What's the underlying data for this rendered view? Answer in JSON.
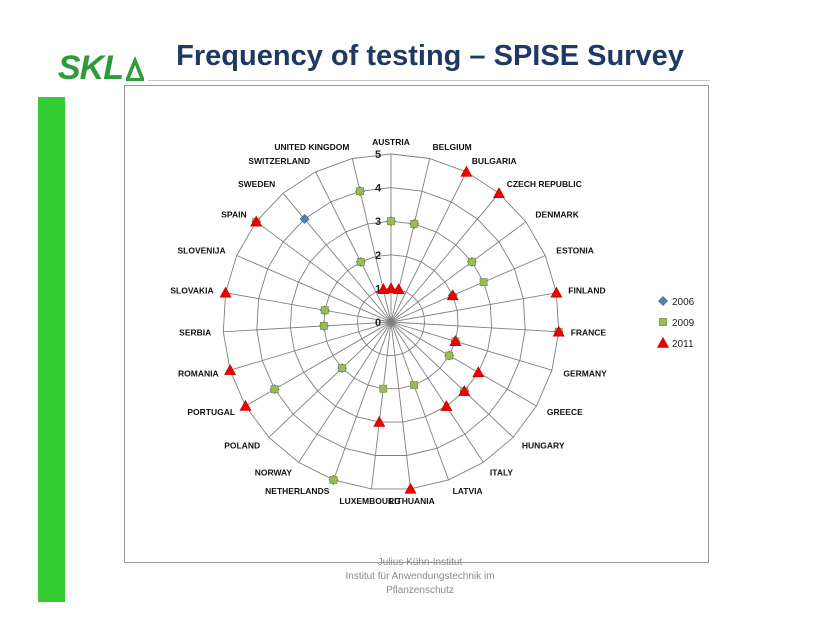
{
  "header": {
    "logo_text": "SKL",
    "title": "Frequency of testing – SPISE Survey"
  },
  "footer": {
    "line1": "Julius Kühn-Institut",
    "line2": "Institut für Anwendungstechnik im",
    "line3": "Pflanzenschutz"
  },
  "colors": {
    "title": "#1f3864",
    "green_bar": "#33cc33",
    "logo": "#2e9b3a",
    "s2006": "#4f81bd",
    "s2009": "#9bbb59",
    "s2011": "#ee0000"
  },
  "chart_data": {
    "type": "radar",
    "title": "",
    "rlim": [
      0,
      5
    ],
    "r_ticks": [
      0,
      1,
      2,
      3,
      4,
      5
    ],
    "grid": true,
    "legend_position": "right",
    "categories": [
      "AUSTRIA",
      "BELGIUM",
      "BULGARIA",
      "CZECH REPUBLIC",
      "DENMARK",
      "ESTONIA",
      "FINLAND",
      "FRANCE",
      "GERMANY",
      "GREECE",
      "HUNGARY",
      "ITALY",
      "LATVIA",
      "LITHUANIA",
      "LUXEMBOURG",
      "NETHERLANDS",
      "NORWAY",
      "POLAND",
      "PORTUGAL",
      "ROMANIA",
      "SERBIA",
      "SLOVAKIA",
      "SLOVENIJA",
      "SPAIN",
      "SWEDEN",
      "SWITZERLAND",
      "UNITED KINGDOM"
    ],
    "series": [
      {
        "name": "2006",
        "marker": "diamond",
        "values": [
          3,
          3,
          null,
          null,
          3,
          2,
          null,
          5,
          2,
          2,
          3,
          null,
          null,
          null,
          null,
          5,
          null,
          2,
          4,
          null,
          2,
          2,
          null,
          5,
          4,
          2,
          4
        ]
      },
      {
        "name": "2009",
        "marker": "square",
        "values": [
          3,
          3,
          null,
          null,
          3,
          3,
          null,
          5,
          2,
          2,
          3,
          null,
          2,
          null,
          2,
          5,
          null,
          2,
          4,
          null,
          2,
          2,
          null,
          5,
          null,
          2,
          4
        ]
      },
      {
        "name": "2011",
        "marker": "triangle",
        "values": [
          1,
          1,
          5,
          5,
          null,
          2,
          5,
          5,
          2,
          3,
          3,
          3,
          null,
          5,
          3,
          null,
          null,
          null,
          5,
          5,
          null,
          5,
          null,
          5,
          null,
          null,
          1
        ]
      }
    ]
  }
}
